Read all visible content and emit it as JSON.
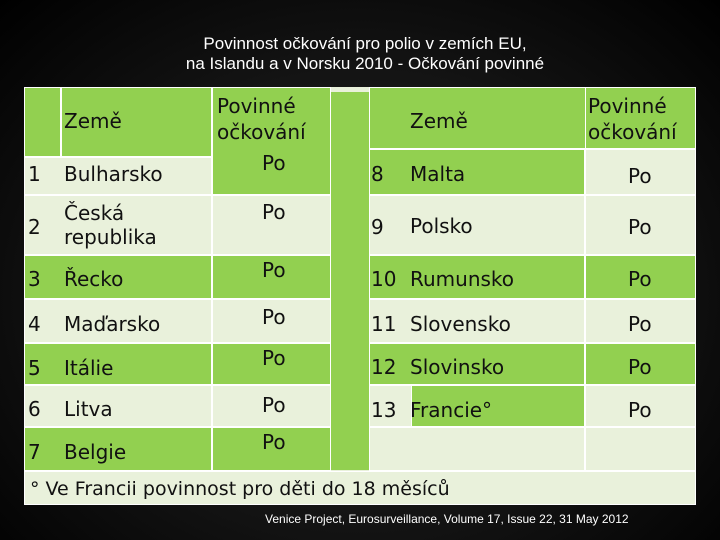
{
  "slide": {
    "title_line1": "Povinnost očkování pro polio v zemích EU,",
    "title_line2": "na Islandu a v Norsku  2010 - Očkování povinné",
    "footnote": "° Ve Francii povinnost pro děti do 18 měsíců",
    "source": "Venice Project, Eurosurveillance, Volume 17, Issue 22, 31 May 2012"
  },
  "headers": {
    "left_country": "Země",
    "left_vaccination": [
      "Povinné",
      "očkování"
    ],
    "right_country": "Země",
    "right_vaccination": [
      "Povinné",
      "očkování"
    ]
  },
  "left_rows": [
    {
      "num": "1",
      "country": "Bulharsko",
      "value": "Po"
    },
    {
      "num": "2",
      "country": "Česká republika",
      "value": "Po"
    },
    {
      "num": "3",
      "country": "Řecko",
      "value": "Po"
    },
    {
      "num": "4",
      "country": "Maďarsko",
      "value": "Po"
    },
    {
      "num": "5",
      "country": "Itálie",
      "value": "Po"
    },
    {
      "num": "6",
      "country": "Litva",
      "value": "Po"
    },
    {
      "num": "7",
      "country": "Belgie",
      "value": "Po"
    }
  ],
  "right_rows": [
    {
      "num": "8",
      "country": "Malta",
      "value": "Po"
    },
    {
      "num": "9",
      "country": "Polsko",
      "value": "Po"
    },
    {
      "num": "10",
      "country": "Rumunsko",
      "value": "Po"
    },
    {
      "num": "11",
      "country": "Slovensko",
      "value": "Po"
    },
    {
      "num": "12",
      "country": "Slovinsko",
      "value": "Po"
    },
    {
      "num": "13",
      "country": "Francie°",
      "value": "Po"
    }
  ],
  "colors": {
    "green": "#92d050",
    "light": "#e9f1db"
  }
}
